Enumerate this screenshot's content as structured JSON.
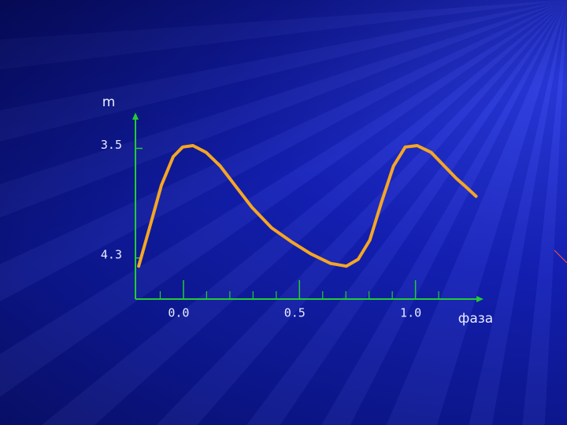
{
  "chart_data": {
    "type": "line",
    "x_label": "фаза",
    "y_label": "m",
    "xlim": [
      -0.2,
      1.3
    ],
    "ylim": [
      4.6,
      3.25
    ],
    "xticks": [
      {
        "value": 0,
        "label": "0.0"
      },
      0.5,
      {
        "value": 1,
        "label": "1.0"
      }
    ],
    "xminor_ticks": [
      -0.1,
      0.1,
      0.2,
      0.3,
      0.4,
      0.6,
      0.7,
      0.8,
      0.9,
      1.1
    ],
    "yticks": [
      3.5,
      4.3
    ],
    "series": [
      {
        "color": "#f5a623",
        "x": [
          -0.193,
          -0.146,
          -0.095,
          -0.044,
          -0.003,
          0.041,
          0.098,
          0.159,
          0.227,
          0.295,
          0.38,
          0.464,
          0.549,
          0.634,
          0.702,
          0.753,
          0.803,
          0.854,
          0.905,
          0.956,
          1.007,
          1.068,
          1.125,
          1.176,
          1.217,
          1.261
        ],
        "values": [
          4.36,
          4.08,
          3.77,
          3.56,
          3.49,
          3.48,
          3.53,
          3.63,
          3.78,
          3.93,
          4.08,
          4.18,
          4.27,
          4.34,
          4.36,
          4.31,
          4.17,
          3.89,
          3.63,
          3.49,
          3.48,
          3.53,
          3.63,
          3.72,
          3.78,
          3.85
        ]
      }
    ]
  }
}
